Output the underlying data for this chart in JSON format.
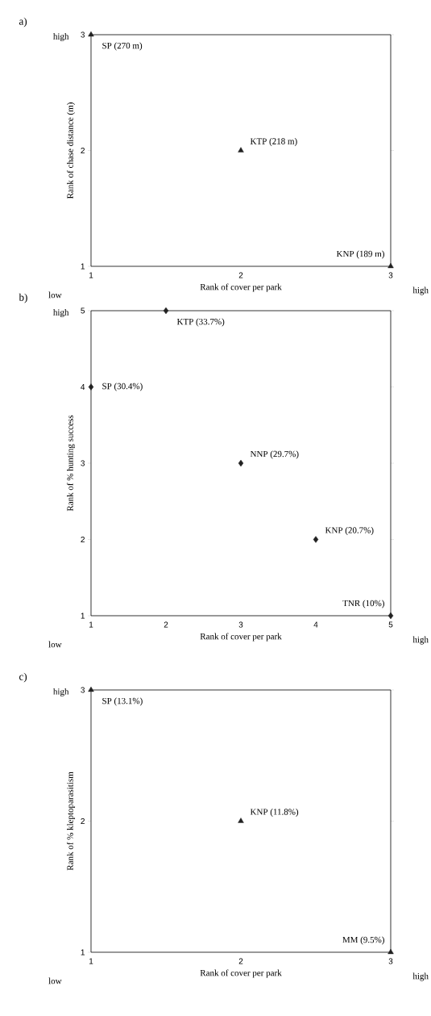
{
  "chart_data": [
    {
      "type": "scatter",
      "title": "a)",
      "xlabel": "Rank of cover per park",
      "ylabel": "Rank of chase distance (m)",
      "x": [
        1,
        2,
        3
      ],
      "values": [
        3,
        2,
        1
      ],
      "color": "#222222",
      "marker": "triangle",
      "xlim": [
        1,
        3
      ],
      "ylim": [
        1,
        3
      ],
      "xticks": [
        1,
        2,
        3
      ],
      "yticks": [
        1,
        2,
        3
      ],
      "annotations": [
        "low",
        "high",
        "high",
        {
          "text": "SP (270 m)",
          "x": 1,
          "y": 3
        },
        {
          "text": "KTP (218 m)",
          "x": 2,
          "y": 2
        },
        {
          "text": "KNP (189 m)",
          "x": 3,
          "y": 1
        }
      ]
    },
    {
      "type": "scatter",
      "title": "b)",
      "xlabel": "Rank of cover per park",
      "ylabel": "Rank of % hunting success",
      "x": [
        1,
        2,
        3,
        4,
        5
      ],
      "values": [
        4,
        5,
        3,
        2,
        1
      ],
      "color": "#222222",
      "marker": "diamond",
      "xlim": [
        1,
        5
      ],
      "ylim": [
        1,
        5
      ],
      "xticks": [
        1,
        2,
        3,
        4,
        5
      ],
      "yticks": [
        1,
        2,
        3,
        4,
        5
      ],
      "annotations": [
        "low",
        "high",
        "high",
        {
          "text": "SP (30.4%)",
          "x": 1,
          "y": 4
        },
        {
          "text": "KTP (33.7%)",
          "x": 2,
          "y": 5
        },
        {
          "text": "NNP (29.7%)",
          "x": 3,
          "y": 3
        },
        {
          "text": "KNP (20.7%)",
          "x": 4,
          "y": 2
        },
        {
          "text": "TNR (10%)",
          "x": 5,
          "y": 1
        }
      ]
    },
    {
      "type": "scatter",
      "title": "c)",
      "xlabel": "Rank of cover per park",
      "ylabel": "Rank of % kleptoparasitism",
      "x": [
        1,
        2,
        3
      ],
      "values": [
        3,
        2,
        1
      ],
      "color": "#222222",
      "marker": "triangle",
      "xlim": [
        1,
        3
      ],
      "ylim": [
        1,
        3
      ],
      "xticks": [
        1,
        2,
        3
      ],
      "yticks": [
        1,
        2,
        3
      ],
      "annotations": [
        "low",
        "high",
        "high",
        {
          "text": "SP (13.1%)",
          "x": 1,
          "y": 3
        },
        {
          "text": "KNP (11.8%)",
          "x": 2,
          "y": 2
        },
        {
          "text": "MM (9.5%)",
          "x": 3,
          "y": 1
        }
      ]
    }
  ]
}
